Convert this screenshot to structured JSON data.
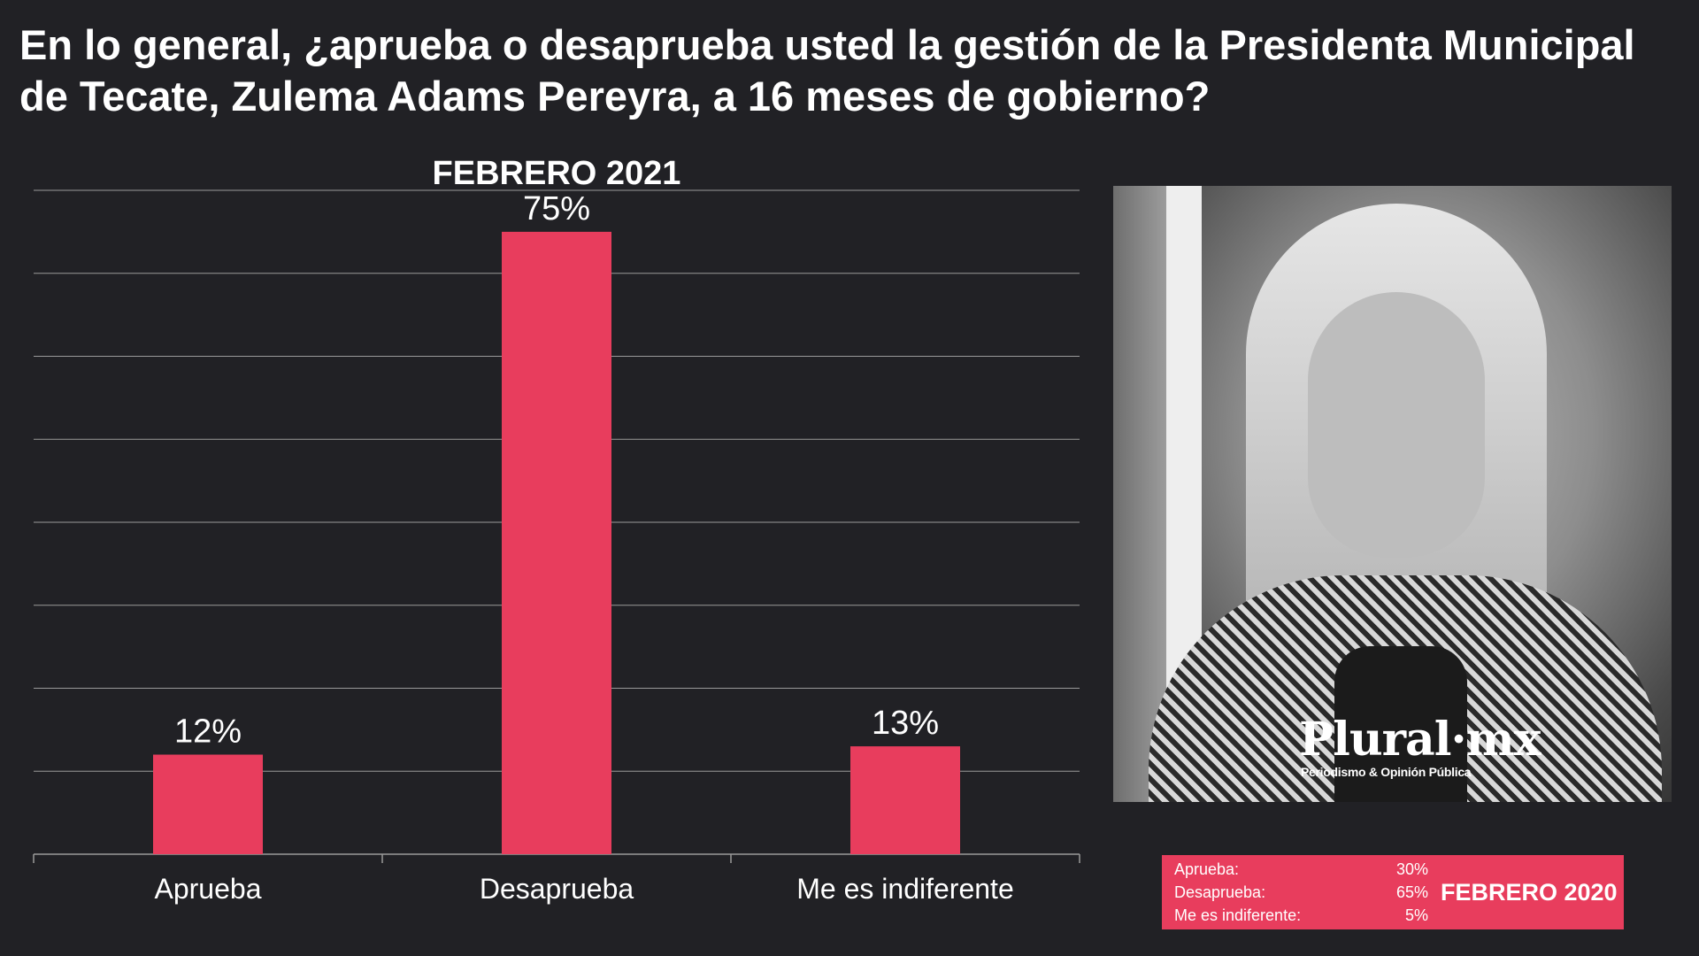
{
  "headline": "En lo general, ¿aprueba o desaprueba usted la gestión de la Presidenta Municipal de Tecate, Zulema Adams Pereyra, a 16 meses de gobierno?",
  "colors": {
    "background": "#212125",
    "bar": "#e83d5d",
    "gridline": "#9a9a9a",
    "text": "#ffffff"
  },
  "chart_data": {
    "type": "bar",
    "title": "FEBRERO 2021",
    "categories": [
      "Aprueba",
      "Desaprueba",
      "Me es indiferente"
    ],
    "values": [
      12,
      75,
      13
    ],
    "value_labels": [
      "12%",
      "75%",
      "13%"
    ],
    "ylim": [
      0,
      80
    ],
    "grid": true,
    "unit": "%"
  },
  "photo": {
    "logo_text": "Plural·mx",
    "logo_subtitle": "Periodismo & Opinión Pública"
  },
  "previous": {
    "title": "FEBRERO 2020",
    "rows": [
      {
        "label": "Aprueba:",
        "value": "30%"
      },
      {
        "label": "Desaprueba:",
        "value": "65%"
      },
      {
        "label": "Me es indiferente:",
        "value": "5%"
      }
    ]
  }
}
